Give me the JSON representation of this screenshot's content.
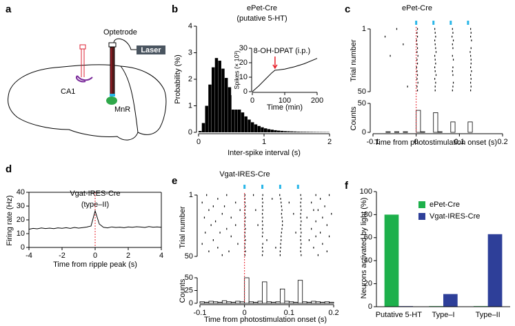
{
  "diagram": {
    "panel": "a",
    "labels": [
      "Optetrode",
      "Laser",
      "CA1",
      "MnR"
    ]
  },
  "chart_data": [
    {
      "type": "histogram",
      "panel": "b",
      "title": "ePet-Cre",
      "subtitle": "(putative 5-HT)",
      "xlabel": "Inter-spike interval (s)",
      "ylabel": "Probability (%)",
      "color": "#000000",
      "xlim": [
        0,
        2
      ],
      "xticks": [
        0,
        1,
        2
      ],
      "ylim": [
        0,
        4
      ],
      "yticks": [
        0,
        1,
        2,
        3,
        4
      ],
      "bins": [
        0,
        0.05,
        0.1,
        0.15,
        0.2,
        0.25,
        0.3,
        0.35,
        0.4,
        0.45,
        0.5,
        0.55,
        0.6,
        0.65,
        0.7,
        0.75,
        0.8,
        0.85,
        0.9,
        0.95,
        1,
        1.05,
        1.1,
        1.15,
        1.2,
        1.25,
        1.3,
        1.35,
        1.4,
        1.45,
        1.5,
        1.55,
        1.6,
        1.65,
        1.7,
        1.75,
        1.8,
        1.85,
        1.9,
        1.95,
        2
      ],
      "values": [
        0.05,
        0.35,
        1.0,
        1.8,
        2.45,
        2.8,
        2.7,
        2.4,
        2.05,
        1.7,
        1.4,
        1.15,
        0.92,
        0.75,
        0.6,
        0.48,
        0.38,
        0.3,
        0.24,
        0.19,
        0.15,
        0.12,
        0.1,
        0.08,
        0.065,
        0.055,
        0.045,
        0.04,
        0.035,
        0.03,
        0.025,
        0.022,
        0.02,
        0.018,
        0.016,
        0.014,
        0.012,
        0.011,
        0.01,
        0.009
      ],
      "inset": {
        "type": "line",
        "xlabel": "Time (min)",
        "ylabel": "Spikes (× 10³)",
        "color": "#000000",
        "xlim": [
          0,
          200
        ],
        "xticks": [
          0,
          100,
          200
        ],
        "ylim": [
          0,
          30
        ],
        "yticks": [
          0,
          10,
          20,
          30
        ],
        "x": [
          0,
          20,
          40,
          60,
          70,
          80,
          100,
          130,
          160,
          200
        ],
        "values": [
          0,
          4,
          8.5,
          13,
          14.8,
          15,
          15.6,
          17.2,
          19.3,
          23
        ],
        "annotation": {
          "text": "8-OH-DPAT (i.p.)",
          "x": 70,
          "color": "#e8202a"
        }
      }
    },
    {
      "type": "raster",
      "panel": "c",
      "title": "ePet-Cre",
      "xlabel": "Time from photostimulation onset (s)",
      "xlim": [
        -0.1,
        0.2
      ],
      "xticks": [
        -0.1,
        0,
        0.1,
        0.2
      ],
      "pulses": [
        0,
        0.04,
        0.08,
        0.12
      ],
      "pulse_color": "#29b6e8",
      "vline": 0,
      "vline_color": "#e8202a",
      "raster": {
        "ylabel": "Trial number",
        "ylim": [
          1,
          50
        ],
        "yticks": [
          1,
          50
        ],
        "inverted": true,
        "trials": [
          1,
          4,
          7,
          10,
          13,
          16,
          19,
          22,
          25,
          28,
          31,
          34,
          37,
          40,
          43,
          46,
          49
        ],
        "spikes": [
          [
            -0.045,
            0.003,
            0.043,
            0.084,
            0.126
          ],
          [
            0.002,
            0.044,
            0.085,
            0.127
          ],
          [
            -0.072,
            0.003,
            0.045,
            0.083,
            0.126
          ],
          [
            0.001,
            0.043,
            0.086,
            0.128
          ],
          [
            -0.03,
            0.002,
            0.044,
            0.084
          ],
          [
            0.003,
            0.045,
            0.085,
            0.127
          ],
          [
            0.002,
            0.046,
            0.125
          ],
          [
            -0.06,
            0.004,
            0.043,
            0.084,
            0.126
          ],
          [
            0.002,
            0.044,
            0.086,
            0.127
          ],
          [
            0.003,
            0.045,
            0.127
          ],
          [
            0.001,
            0.043,
            0.085,
            0.126
          ],
          [
            0.002,
            0.044,
            0.084,
            0.128
          ],
          [
            0.003,
            0.046,
            0.085,
            0.126
          ],
          [
            0.002,
            0.043,
            0.127
          ],
          [
            0.004,
            0.045,
            0.086,
            0.126
          ],
          [
            -0.02,
            0.002,
            0.044,
            0.085,
            0.127
          ],
          [
            0.003,
            0.044,
            0.084,
            0.126
          ]
        ]
      },
      "psth": {
        "ylabel": "Counts",
        "ylim": [
          0,
          50
        ],
        "yticks": [
          0,
          50
        ],
        "bins": [
          -0.1,
          -0.09,
          -0.08,
          -0.07,
          -0.06,
          -0.05,
          -0.04,
          -0.03,
          -0.02,
          -0.01,
          0,
          0.01,
          0.02,
          0.03,
          0.04,
          0.05,
          0.06,
          0.07,
          0.08,
          0.09,
          0.1,
          0.11,
          0.12,
          0.13,
          0.14,
          0.15,
          0.16,
          0.17,
          0.18,
          0.19,
          0.2
        ],
        "values": [
          0,
          0,
          0,
          1,
          0,
          1,
          0,
          1,
          0,
          0,
          38,
          1,
          0,
          0,
          34,
          1,
          0,
          0,
          18,
          0,
          0,
          0,
          18,
          0,
          0,
          0,
          0,
          0,
          0,
          0
        ]
      }
    },
    {
      "type": "line",
      "panel": "d",
      "title": "Vgat-IRES-Cre",
      "subtitle": "(type–II)",
      "xlabel": "Time from ripple peak (s)",
      "ylabel": "Firing rate (Hz)",
      "color": "#000000",
      "xlim": [
        -4,
        4
      ],
      "xticks": [
        -4,
        -2,
        0,
        2,
        4
      ],
      "ylim": [
        0,
        40
      ],
      "yticks": [
        0,
        10,
        20,
        30,
        40
      ],
      "vline": 0,
      "vline_color": "#e8202a",
      "x": [
        -4,
        -3.75,
        -3.5,
        -3.25,
        -3,
        -2.75,
        -2.5,
        -2.25,
        -2,
        -1.75,
        -1.5,
        -1.25,
        -1,
        -0.75,
        -0.5,
        -0.25,
        0,
        0.25,
        0.5,
        0.75,
        1,
        1.25,
        1.5,
        1.75,
        2,
        2.25,
        2.5,
        2.75,
        3,
        3.25,
        3.5,
        3.75,
        4
      ],
      "values": [
        13.2,
        13.8,
        13.5,
        14.1,
        13.7,
        14.0,
        13.6,
        14.2,
        13.9,
        14.3,
        13.8,
        14.5,
        14.0,
        14.4,
        14.8,
        15.5,
        26.5,
        17,
        14.6,
        14.2,
        14.9,
        14.5,
        14.7,
        14.3,
        14.9,
        14.6,
        15.0,
        14.8,
        14.5,
        15.1,
        14.7,
        14.9,
        14.6
      ]
    },
    {
      "type": "raster",
      "panel": "e",
      "title": "Vgat-IRES-Cre",
      "xlabel": "Time from photostimulation onset (s)",
      "xlim": [
        -0.1,
        0.2
      ],
      "xticks": [
        -0.1,
        0,
        0.1,
        0.2
      ],
      "pulses": [
        0,
        0.04,
        0.08,
        0.12
      ],
      "pulse_color": "#29b6e8",
      "vline": 0,
      "vline_color": "#e8202a",
      "raster": {
        "ylabel": "Trial number",
        "ylim": [
          1,
          50
        ],
        "yticks": [
          1,
          50
        ],
        "inverted": true,
        "trials": [
          1,
          4,
          7,
          10,
          13,
          16,
          19,
          22,
          25,
          28,
          31,
          34,
          37,
          40,
          43,
          46,
          49
        ],
        "spikes": [
          [
            -0.085,
            -0.04,
            0.001,
            0.02,
            0.041,
            0.079,
            0.126,
            0.16,
            0.19
          ],
          [
            -0.06,
            0.001,
            0.04,
            0.062,
            0.081,
            0.127,
            0.17
          ],
          [
            -0.095,
            -0.02,
            0.001,
            0.041,
            0.082,
            0.1,
            0.126,
            0.15
          ],
          [
            -0.07,
            -0.045,
            0.002,
            0.04,
            0.083,
            0.126,
            0.18
          ],
          [
            -0.08,
            -0.01,
            0.001,
            0.025,
            0.041,
            0.084,
            0.127,
            0.155,
            0.165
          ],
          [
            -0.05,
            0.001,
            0.04,
            0.083,
            0.11,
            0.126,
            0.195
          ],
          [
            -0.09,
            -0.03,
            0.002,
            0.041,
            0.084,
            0.126,
            0.14,
            0.175
          ],
          [
            -0.065,
            0.001,
            0.04,
            0.085,
            0.127,
            0.16
          ],
          [
            -0.075,
            -0.02,
            0.001,
            0.03,
            0.041,
            0.085,
            0.126,
            0.185
          ],
          [
            -0.04,
            0.002,
            0.04,
            0.084,
            0.126,
            0.15
          ],
          [
            -0.088,
            -0.055,
            0.001,
            0.041,
            0.083,
            0.115,
            0.127,
            0.17
          ],
          [
            -0.03,
            0.001,
            0.04,
            0.082,
            0.126,
            0.16,
            0.19
          ],
          [
            -0.07,
            0.002,
            0.05,
            0.082,
            0.126,
            0.145
          ],
          [
            -0.095,
            -0.015,
            0.001,
            0.041,
            0.081,
            0.127,
            0.175
          ],
          [
            -0.06,
            0.001,
            0.04,
            0.07,
            0.081,
            0.126,
            0.155
          ],
          [
            -0.08,
            -0.035,
            0.002,
            0.041,
            0.08,
            0.126,
            0.185
          ],
          [
            -0.05,
            0.001,
            0.04,
            0.08,
            0.127,
            0.165
          ]
        ]
      },
      "psth": {
        "ylabel": "Counts",
        "ylim": [
          0,
          50
        ],
        "yticks": [
          0,
          25,
          50
        ],
        "bins": [
          -0.1,
          -0.09,
          -0.08,
          -0.07,
          -0.06,
          -0.05,
          -0.04,
          -0.03,
          -0.02,
          -0.01,
          0,
          0.01,
          0.02,
          0.03,
          0.04,
          0.05,
          0.06,
          0.07,
          0.08,
          0.09,
          0.1,
          0.11,
          0.12,
          0.13,
          0.14,
          0.15,
          0.16,
          0.17,
          0.18,
          0.19,
          0.2
        ],
        "values": [
          3,
          2,
          4,
          3,
          2,
          5,
          3,
          2,
          4,
          3,
          50,
          3,
          2,
          4,
          42,
          3,
          2,
          3,
          28,
          4,
          3,
          2,
          45,
          3,
          2,
          4,
          3,
          2,
          3,
          2
        ]
      }
    },
    {
      "type": "bar",
      "panel": "f",
      "ylabel": "Neurons activated by light (%)",
      "categories": [
        "Putative 5-HT",
        "Type–I",
        "Type–II"
      ],
      "series": [
        {
          "name": "ePet-Cre",
          "color": "#1db04b",
          "values": [
            80,
            0.5,
            0.5
          ]
        },
        {
          "name": "Vgat-IRES-Cre",
          "color": "#2e3f99",
          "values": [
            0.5,
            11,
            63
          ]
        }
      ],
      "ylim": [
        0,
        100
      ],
      "yticks": [
        0,
        20,
        40,
        60,
        80,
        100
      ],
      "legend": "upper right"
    }
  ]
}
